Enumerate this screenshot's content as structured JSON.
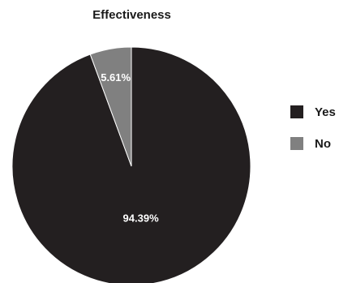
{
  "chart_data": {
    "type": "pie",
    "title": "Effectiveness",
    "slices": [
      {
        "label": "Yes",
        "value": 94.39,
        "display": "94.39%",
        "color": "#231f20"
      },
      {
        "label": "No",
        "value": 5.61,
        "display": "5.61%",
        "color": "#808080"
      }
    ],
    "start": "12 o'clock",
    "direction": "counter-clockwise for No, Yes fills remainder",
    "label_color": "#ffffff",
    "edge_color": "#ffffff",
    "legend": {
      "placement": "right",
      "items": [
        {
          "label": "Yes",
          "color": "#231f20"
        },
        {
          "label": "No",
          "color": "#808080"
        }
      ]
    }
  }
}
